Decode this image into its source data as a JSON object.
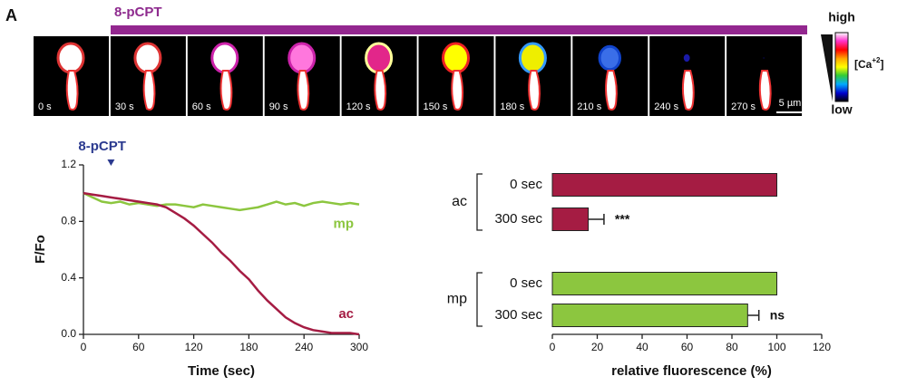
{
  "figure": {
    "panel": "A",
    "treatment": "8-pCPT",
    "frames": [
      "0 s",
      "30 s",
      "60 s",
      "90 s",
      "120 s",
      "150 s",
      "180 s",
      "210 s",
      "240 s",
      "270 s"
    ],
    "scale_bar": "5 µm",
    "colorbar": {
      "high": "high",
      "low": "low",
      "label_parts": [
        "[Ca",
        "+2",
        "]"
      ]
    }
  },
  "chart_data": [
    {
      "type": "line",
      "xlabel": "Time (sec)",
      "ylabel": "F/Fo",
      "x": [
        0,
        10,
        20,
        30,
        40,
        50,
        60,
        70,
        80,
        90,
        100,
        110,
        120,
        130,
        140,
        150,
        160,
        170,
        180,
        190,
        200,
        210,
        220,
        230,
        240,
        250,
        260,
        270,
        280,
        290,
        300
      ],
      "series": [
        {
          "name": "mp",
          "color": "#8cc63f",
          "values": [
            1.0,
            0.97,
            0.94,
            0.93,
            0.94,
            0.92,
            0.93,
            0.92,
            0.91,
            0.92,
            0.92,
            0.91,
            0.9,
            0.92,
            0.91,
            0.9,
            0.89,
            0.88,
            0.89,
            0.9,
            0.92,
            0.94,
            0.92,
            0.93,
            0.91,
            0.93,
            0.94,
            0.93,
            0.92,
            0.93,
            0.92
          ]
        },
        {
          "name": "ac",
          "color": "#a51c43",
          "values": [
            1.0,
            0.99,
            0.98,
            0.97,
            0.96,
            0.95,
            0.94,
            0.93,
            0.92,
            0.9,
            0.86,
            0.82,
            0.77,
            0.71,
            0.65,
            0.58,
            0.52,
            0.45,
            0.39,
            0.31,
            0.24,
            0.18,
            0.12,
            0.08,
            0.05,
            0.03,
            0.02,
            0.01,
            0.01,
            0.01,
            0.0
          ]
        }
      ],
      "xlim": [
        0,
        300
      ],
      "xticks": [
        0,
        60,
        120,
        180,
        240,
        300
      ],
      "ylim": [
        0,
        1.2
      ],
      "yticks": [
        {
          "value": 0,
          "label": "0.0"
        },
        0.4,
        0.8,
        1.2
      ],
      "annotation": {
        "text": "8-pCPT",
        "x": 30,
        "color": "#2b3a8f"
      }
    },
    {
      "type": "bar",
      "orientation": "horizontal",
      "xlabel": "relative fluorescence (%)",
      "categories": [
        "0 sec",
        "300 sec",
        "0 sec",
        "300 sec"
      ],
      "groups": [
        "ac",
        "ac",
        "mp",
        "mp"
      ],
      "values": [
        100,
        16,
        100,
        87
      ],
      "errors": [
        0,
        7,
        0,
        5
      ],
      "colors": [
        "#a51c43",
        "#a51c43",
        "#8cc63f",
        "#8cc63f"
      ],
      "annotations": [
        null,
        "***",
        null,
        "ns"
      ],
      "xlim": [
        0,
        120
      ],
      "xticks": [
        0,
        20,
        40,
        60,
        80,
        100,
        120
      ]
    }
  ]
}
